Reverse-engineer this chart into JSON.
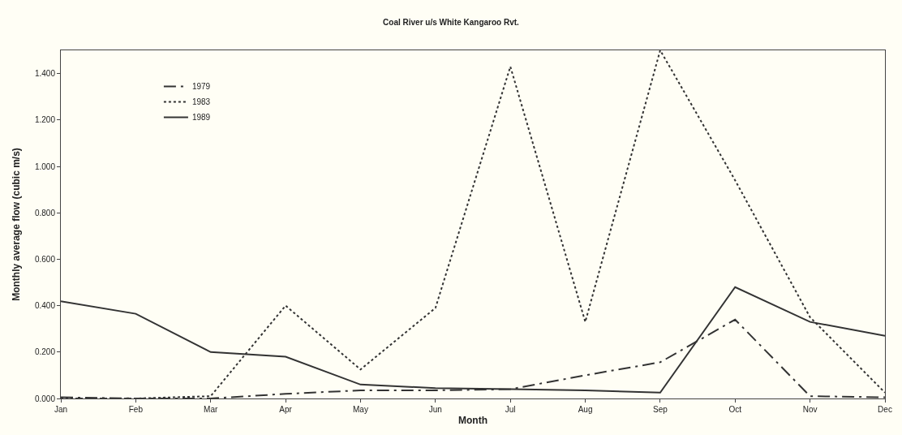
{
  "chart_data": {
    "type": "line",
    "title": "Coal River u/s White Kangaroo Rvt.",
    "xlabel": "Month",
    "ylabel": "Monthly average flow (cubic m/s)",
    "categories": [
      "Jan",
      "Feb",
      "Mar",
      "Apr",
      "May",
      "Jun",
      "Jul",
      "Aug",
      "Sep",
      "Oct",
      "Nov",
      "Dec"
    ],
    "series": [
      {
        "name": "1979",
        "color": "#333333",
        "line_style": "dashdot",
        "values": [
          0.005,
          0,
          0,
          0.02,
          0.035,
          0.035,
          0.04,
          0.1,
          0.156,
          0.34,
          0.01,
          0.005
        ]
      },
      {
        "name": "1983",
        "color": "#333333",
        "line_style": "dotted",
        "values": [
          0,
          0,
          0.01,
          0.4,
          0.125,
          0.39,
          1.43,
          0.33,
          1.5,
          0.94,
          0.35,
          0.025
        ]
      },
      {
        "name": "1989",
        "color": "#333333",
        "line_style": "solid",
        "values": [
          0.419,
          0.365,
          0.2,
          0.18,
          0.06,
          0.045,
          0.04,
          0.035,
          0.025,
          0.48,
          0.33,
          0.27
        ]
      }
    ],
    "ylim": [
      0,
      1.5
    ],
    "yticks": [
      {
        "value": 0,
        "label": "0.000"
      },
      {
        "value": 0.2,
        "label": "0.200"
      },
      {
        "value": 0.4,
        "label": "0.400"
      },
      {
        "value": 0.6,
        "label": "0.600"
      },
      {
        "value": 0.8,
        "label": "0.800"
      },
      {
        "value": 1.0,
        "label": "1.000"
      },
      {
        "value": 1.2,
        "label": "1.200"
      },
      {
        "value": 1.4,
        "label": "1.400"
      }
    ],
    "grid": false,
    "legend": "top left",
    "marker": "none"
  }
}
